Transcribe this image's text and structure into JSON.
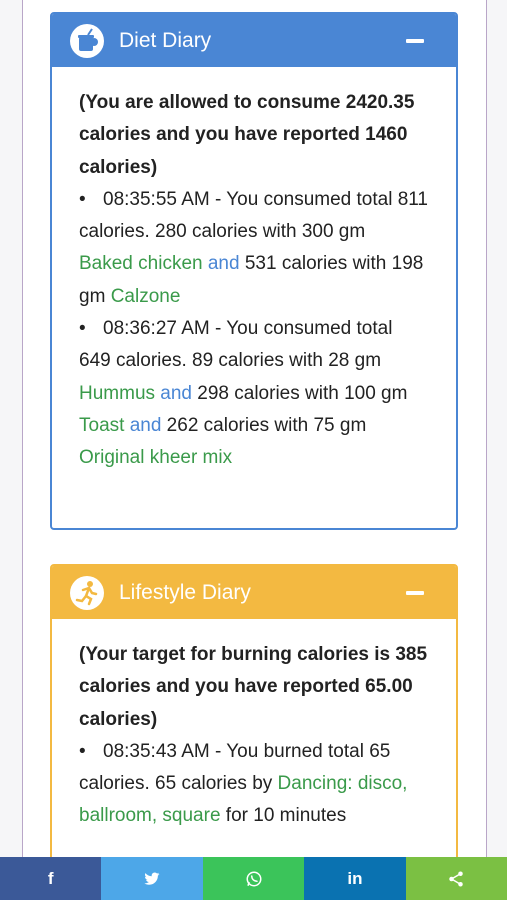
{
  "diet": {
    "title": "Diet Diary",
    "summary": "(You are allowed to consume 2420.35 calories and you have reported 1460 calories)",
    "entries": [
      {
        "time_text": "08:35:55 AM - You consumed total 811 calories. 280 calories with 300 gm",
        "food1": "Baked chicken",
        "and1": " and",
        "text2": " 531 calories with 198 gm",
        "food2": "Calzone"
      },
      {
        "time_text": "08:36:27 AM - You consumed total 649 calories. 89 calories with 28 gm",
        "food1": "Hummus",
        "and1": " and",
        "text2": " 298 calories with 100 gm",
        "food2": "Toast",
        "and2": " and",
        "text3": " 262 calories with 75 gm",
        "food3": "Original kheer mix"
      }
    ]
  },
  "lifestyle": {
    "title": "Lifestyle Diary",
    "summary": "(Your target for burning calories is 385 calories and you have reported 65.00 calories)",
    "entries": [
      {
        "time_text": "08:35:43 AM - You burned total 65 calories. 65 calories by",
        "activity": "Dancing: disco, ballroom, square",
        "text2": " for 10 minutes"
      }
    ]
  },
  "bullet": "•",
  "share": {
    "facebook": "f",
    "twitter": "twitter-icon",
    "whatsapp": "whatsapp-icon",
    "linkedin": "in",
    "share": "share-icon"
  },
  "colors": {
    "diet_accent": "#4a86d4",
    "lifestyle_accent": "#f3b941",
    "food_link": "#3a9a4a"
  }
}
